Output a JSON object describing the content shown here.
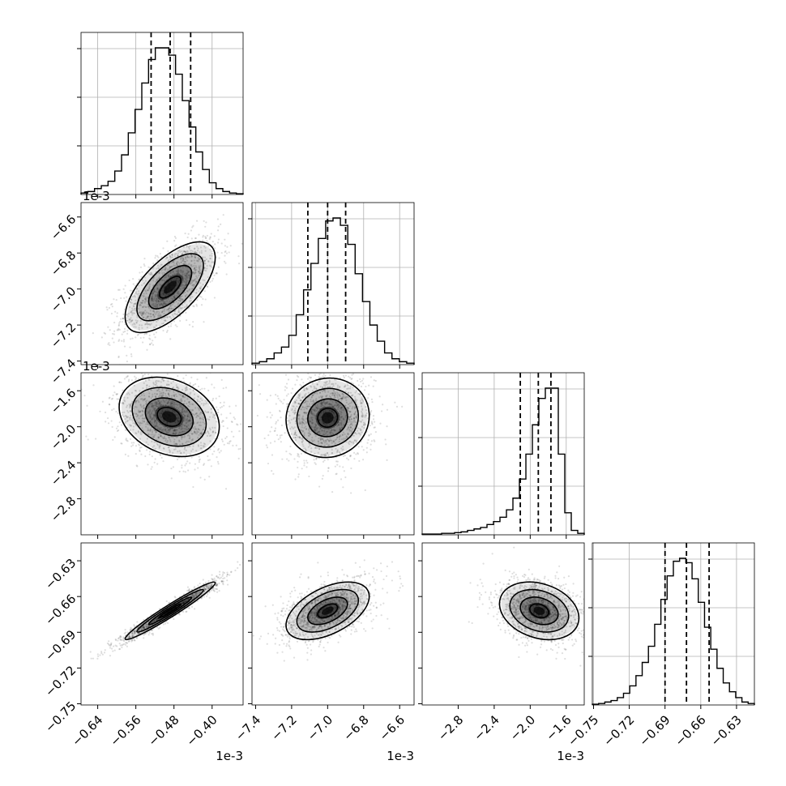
{
  "chart_data": {
    "type": "corner",
    "parameters": [
      {
        "offset_text": "1e-3",
        "ticks": [
          "-0.64",
          "-0.56",
          "-0.48",
          "-0.40"
        ],
        "range": [
          -0.675,
          -0.335
        ]
      },
      {
        "offset_text": "1e-3",
        "ticks": [
          "-7.4",
          "-7.2",
          "-7.0",
          "-6.8",
          "-6.6"
        ],
        "range": [
          -7.42,
          -6.52
        ]
      },
      {
        "offset_text": "1e-3",
        "ticks": [
          "-2.8",
          "-2.4",
          "-2.0",
          "-1.6"
        ],
        "range": [
          -3.2,
          -1.4
        ]
      },
      {
        "offset_text": "",
        "ticks": [
          "-0.75",
          "-0.72",
          "-0.69",
          "-0.66",
          "-0.63"
        ],
        "range": [
          -0.751,
          -0.615
        ]
      }
    ],
    "marginals": [
      {
        "quantiles": [
          -0.528,
          -0.488,
          -0.445
        ],
        "hist": [
          0.01,
          0.02,
          0.04,
          0.06,
          0.09,
          0.16,
          0.27,
          0.42,
          0.58,
          0.76,
          0.92,
          1.0,
          1.0,
          0.95,
          0.82,
          0.64,
          0.46,
          0.29,
          0.17,
          0.08,
          0.04,
          0.02,
          0.01,
          0.005
        ]
      },
      {
        "quantiles": [
          -7.11,
          -7.0,
          -6.9
        ],
        "hist": [
          0.01,
          0.02,
          0.04,
          0.08,
          0.12,
          0.2,
          0.34,
          0.51,
          0.69,
          0.86,
          0.98,
          1.0,
          0.95,
          0.82,
          0.62,
          0.43,
          0.27,
          0.16,
          0.08,
          0.04,
          0.02,
          0.01
        ]
      },
      {
        "quantiles": [
          -2.11,
          -1.91,
          -1.77
        ],
        "hist": [
          0.005,
          0.005,
          0.005,
          0.01,
          0.01,
          0.015,
          0.02,
          0.03,
          0.04,
          0.05,
          0.07,
          0.09,
          0.12,
          0.17,
          0.25,
          0.38,
          0.55,
          0.75,
          0.93,
          1.0,
          1.0,
          0.55,
          0.15,
          0.03,
          0.01
        ]
      },
      {
        "quantiles": [
          -0.69,
          -0.672,
          -0.653
        ],
        "hist": [
          0.005,
          0.01,
          0.02,
          0.03,
          0.05,
          0.08,
          0.13,
          0.2,
          0.29,
          0.4,
          0.55,
          0.72,
          0.88,
          0.98,
          1.0,
          0.97,
          0.86,
          0.7,
          0.53,
          0.38,
          0.25,
          0.15,
          0.09,
          0.05,
          0.02,
          0.01
        ]
      }
    ],
    "pairs": [
      {
        "row": 1,
        "col": 0,
        "center": [
          -0.488,
          -6.99
        ],
        "sigma": [
          0.045,
          0.12
        ],
        "rho": 0.65
      },
      {
        "row": 2,
        "col": 0,
        "center": [
          -0.49,
          -1.89
        ],
        "sigma": [
          0.05,
          0.21
        ],
        "rho": -0.25
      },
      {
        "row": 2,
        "col": 1,
        "center": [
          -7.0,
          -1.9
        ],
        "sigma": [
          0.11,
          0.21
        ],
        "rho": 0.05
      },
      {
        "row": 3,
        "col": 0,
        "center": [
          -0.488,
          -0.672
        ],
        "sigma": [
          0.045,
          0.0115
        ],
        "rho": 0.97
      },
      {
        "row": 3,
        "col": 1,
        "center": [
          -7.0,
          -0.672
        ],
        "sigma": [
          0.11,
          0.0115
        ],
        "rho": 0.5
      },
      {
        "row": 3,
        "col": 2,
        "center": [
          -1.9,
          -0.672
        ],
        "sigma": [
          0.21,
          0.0115
        ],
        "rho": -0.25
      }
    ],
    "grid": true
  }
}
